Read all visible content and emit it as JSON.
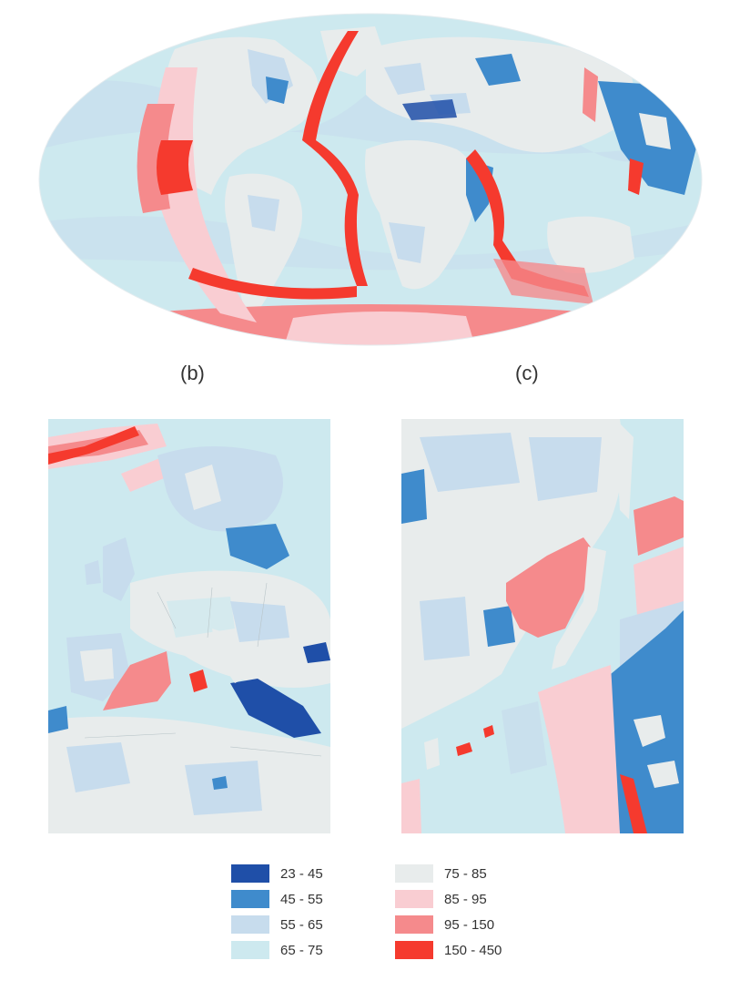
{
  "panels": [
    {
      "id": "world",
      "label": ""
    },
    {
      "id": "europe",
      "label": "(b)"
    },
    {
      "id": "east-asia",
      "label": "(c)"
    }
  ],
  "legend": {
    "items": [
      {
        "label": "23 - 45",
        "color": "#1f4fa8"
      },
      {
        "label": "45 - 55",
        "color": "#3f8bcc"
      },
      {
        "label": "55 - 65",
        "color": "#c7dced"
      },
      {
        "label": "65 - 75",
        "color": "#cde9ef"
      },
      {
        "label": "75 - 85",
        "color": "#e8ecec"
      },
      {
        "label": "85 - 95",
        "color": "#f9cdd2"
      },
      {
        "label": "95 - 150",
        "color": "#f58a8c"
      },
      {
        "label": "150 - 450",
        "color": "#f53a2e"
      }
    ]
  }
}
